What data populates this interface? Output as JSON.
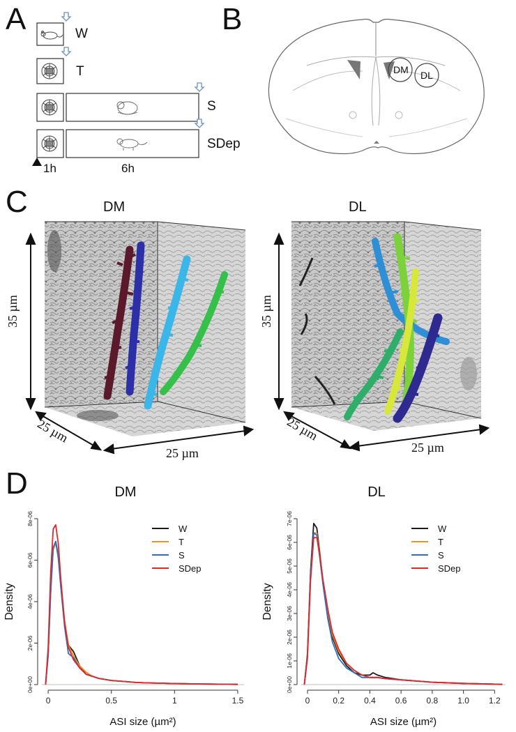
{
  "panels": {
    "a": "A",
    "b": "B",
    "c": "C",
    "d": "D"
  },
  "protocol": {
    "rows": [
      {
        "label": "W"
      },
      {
        "label": "T"
      },
      {
        "label": "S"
      },
      {
        "label": "SDep"
      }
    ],
    "time_1": "1h",
    "time_2": "6h"
  },
  "brain": {
    "region_1": "DM",
    "region_2": "DL"
  },
  "reconstruction": {
    "dm_title": "DM",
    "dl_title": "DL",
    "height_scale": "35 µm",
    "depth_scale": "25 µm",
    "width_scale": "25 µm",
    "dm_dendrite_colors": [
      "#5a1a2c",
      "#2d2fa8",
      "#3bb6e8",
      "#35c04a"
    ],
    "dl_dendrite_colors": [
      "#2e8fd6",
      "#7bd23a",
      "#d8e83a",
      "#2e2a8f",
      "#2fae6a"
    ]
  },
  "chart_data": [
    {
      "type": "line",
      "title": "DM",
      "xlabel": "ASI size (µm²)",
      "ylabel": "Density",
      "xlim": [
        -0.05,
        1.55
      ],
      "ylim": [
        0,
        8e-06
      ],
      "xticks": [
        0,
        0.5,
        1,
        1.5
      ],
      "xtick_labels": [
        "0",
        "0.5",
        "1",
        "1.5"
      ],
      "yticks": [
        0,
        2e-06,
        4e-06,
        6e-06,
        8e-06
      ],
      "ytick_labels": [
        "0e+00",
        "2e-06",
        "4e-06",
        "6e-06",
        "8e-06"
      ],
      "legend": "top-right",
      "series": [
        {
          "name": "W",
          "color": "#1a1a1a",
          "x": [
            -0.02,
            0.0,
            0.02,
            0.04,
            0.06,
            0.08,
            0.1,
            0.13,
            0.16,
            0.2,
            0.25,
            0.3,
            0.35,
            0.4,
            0.5,
            0.6,
            0.7,
            0.8,
            1.0,
            1.2,
            1.5
          ],
          "y": [
            0,
            1.5e-06,
            4.6e-06,
            6.6e-06,
            6.9e-06,
            6.2e-06,
            4.9e-06,
            3e-06,
            1.9e-06,
            1.6e-06,
            9e-07,
            5e-07,
            4e-07,
            3e-07,
            2e-07,
            1.5e-07,
            1e-07,
            8e-08,
            5e-08,
            3e-08,
            1e-08
          ]
        },
        {
          "name": "T",
          "color": "#f0901e",
          "x": [
            -0.02,
            0.0,
            0.02,
            0.04,
            0.06,
            0.08,
            0.1,
            0.13,
            0.16,
            0.2,
            0.25,
            0.3,
            0.35,
            0.4,
            0.5,
            0.6,
            0.7,
            0.8,
            1.0,
            1.2,
            1.5
          ],
          "y": [
            0,
            1.4e-06,
            4.4e-06,
            6.5e-06,
            6.8e-06,
            6.2e-06,
            4.9e-06,
            3.1e-06,
            1.9e-06,
            1.4e-06,
            9e-07,
            6e-07,
            4e-07,
            3e-07,
            2e-07,
            1.5e-07,
            1e-07,
            8e-08,
            5e-08,
            3e-08,
            1e-08
          ]
        },
        {
          "name": "S",
          "color": "#2a6fc8",
          "x": [
            -0.02,
            0.0,
            0.02,
            0.04,
            0.06,
            0.08,
            0.1,
            0.13,
            0.16,
            0.2,
            0.25,
            0.3,
            0.35,
            0.4,
            0.5,
            0.6,
            0.7,
            0.8,
            1.0,
            1.2,
            1.5
          ],
          "y": [
            0,
            1.4e-06,
            4.5e-06,
            6.6e-06,
            6.9e-06,
            6.1e-06,
            4.7e-06,
            2.8e-06,
            1.5e-06,
            1.3e-06,
            8e-07,
            5e-07,
            4e-07,
            3e-07,
            2e-07,
            1.5e-07,
            1e-07,
            8e-08,
            5e-08,
            3e-08,
            1e-08
          ]
        },
        {
          "name": "SDep",
          "color": "#e0282a",
          "x": [
            -0.02,
            0.0,
            0.02,
            0.04,
            0.06,
            0.08,
            0.1,
            0.13,
            0.16,
            0.2,
            0.25,
            0.3,
            0.35,
            0.4,
            0.5,
            0.6,
            0.7,
            0.8,
            1.0,
            1.2,
            1.5
          ],
          "y": [
            0,
            1.8e-06,
            5.4e-06,
            7.5e-06,
            7.7e-06,
            6.8e-06,
            5.1e-06,
            3e-06,
            1.8e-06,
            1.2e-06,
            8e-07,
            5e-07,
            4e-07,
            3e-07,
            2e-07,
            1.5e-07,
            1e-07,
            8e-08,
            5e-08,
            3e-08,
            1e-08
          ]
        }
      ]
    },
    {
      "type": "line",
      "title": "DL",
      "xlabel": "ASI size (µm²)",
      "ylabel": "Density",
      "xlim": [
        -0.04,
        1.27
      ],
      "ylim": [
        0,
        7e-06
      ],
      "xticks": [
        0,
        0.2,
        0.4,
        0.6,
        0.8,
        1,
        1.2
      ],
      "xtick_labels": [
        "0",
        "0.2",
        "0.4",
        "0.6",
        "0.8",
        "1.0",
        "1.2"
      ],
      "yticks": [
        0,
        1e-06,
        2e-06,
        3e-06,
        4e-06,
        5e-06,
        6e-06,
        7e-06
      ],
      "ytick_labels": [
        "0e+00",
        "1e-06",
        "2e-06",
        "3e-06",
        "4e-06",
        "5e-06",
        "6e-06",
        "7e-06"
      ],
      "legend": "top-right",
      "series": [
        {
          "name": "W",
          "color": "#1a1a1a",
          "x": [
            -0.02,
            0.0,
            0.02,
            0.04,
            0.06,
            0.08,
            0.1,
            0.13,
            0.16,
            0.2,
            0.25,
            0.3,
            0.35,
            0.4,
            0.42,
            0.45,
            0.5,
            0.6,
            0.8,
            1.0,
            1.25
          ],
          "y": [
            0,
            1.3e-06,
            4.8e-06,
            6.8e-06,
            6.6e-06,
            5.5e-06,
            4.3e-06,
            3e-06,
            2e-06,
            1.3e-06,
            8e-07,
            5e-07,
            4e-07,
            4e-07,
            5e-07,
            4e-07,
            3e-07,
            2e-07,
            1e-07,
            5e-08,
            1e-08
          ]
        },
        {
          "name": "T",
          "color": "#f0901e",
          "x": [
            -0.02,
            0.0,
            0.02,
            0.04,
            0.06,
            0.08,
            0.1,
            0.13,
            0.16,
            0.2,
            0.25,
            0.3,
            0.35,
            0.4,
            0.42,
            0.45,
            0.5,
            0.6,
            0.8,
            1.0,
            1.25
          ],
          "y": [
            0,
            1.2e-06,
            4.6e-06,
            6.4e-06,
            6.4e-06,
            5.4e-06,
            4.3e-06,
            3.1e-06,
            2.1e-06,
            1.4e-06,
            9e-07,
            6e-07,
            4e-07,
            3e-07,
            3e-07,
            3e-07,
            2.5e-07,
            2e-07,
            1e-07,
            5e-08,
            1e-08
          ]
        },
        {
          "name": "S",
          "color": "#2a6fc8",
          "x": [
            -0.02,
            0.0,
            0.02,
            0.04,
            0.06,
            0.08,
            0.1,
            0.13,
            0.16,
            0.2,
            0.25,
            0.3,
            0.35,
            0.4,
            0.42,
            0.45,
            0.5,
            0.6,
            0.8,
            1.0,
            1.25
          ],
          "y": [
            0,
            1.2e-06,
            4.7e-06,
            6.4e-06,
            6.3e-06,
            5.3e-06,
            4.2e-06,
            2.8e-06,
            1.8e-06,
            1.1e-06,
            7e-07,
            5e-07,
            3e-07,
            3e-07,
            3e-07,
            3e-07,
            2.5e-07,
            2e-07,
            1e-07,
            5e-08,
            1e-08
          ]
        },
        {
          "name": "SDep",
          "color": "#e0282a",
          "x": [
            -0.02,
            0.0,
            0.02,
            0.04,
            0.06,
            0.08,
            0.1,
            0.13,
            0.16,
            0.2,
            0.25,
            0.3,
            0.35,
            0.4,
            0.42,
            0.45,
            0.5,
            0.6,
            0.8,
            1.0,
            1.25
          ],
          "y": [
            0,
            1.1e-06,
            4.4e-06,
            6.2e-06,
            6.2e-06,
            5.4e-06,
            4.4e-06,
            3.2e-06,
            2.2e-06,
            1.5e-06,
            9e-07,
            6e-07,
            4e-07,
            3e-07,
            3e-07,
            3e-07,
            2.5e-07,
            2e-07,
            1e-07,
            5e-08,
            1e-08
          ]
        }
      ]
    }
  ]
}
